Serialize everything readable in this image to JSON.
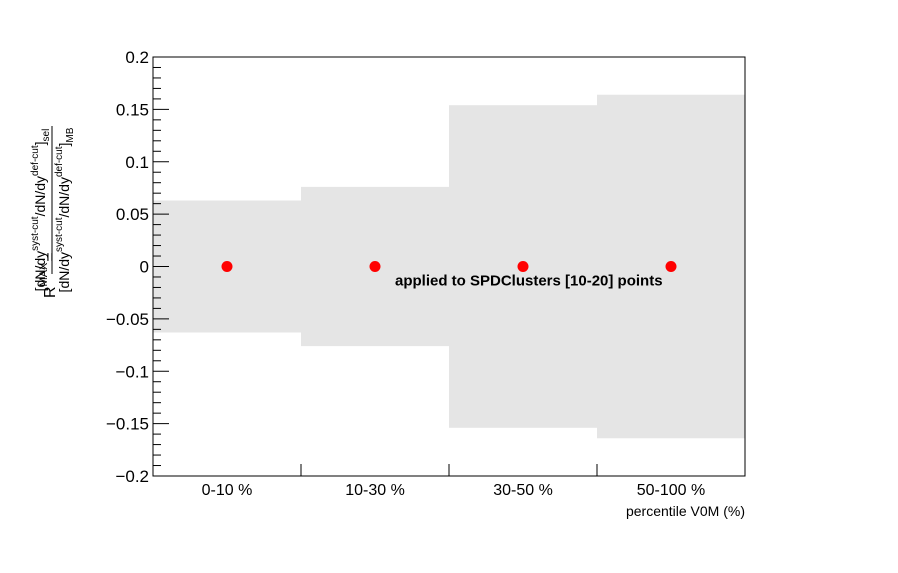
{
  "chart_data": {
    "type": "scatter",
    "categories": [
      "0-10 %",
      "10-30 %",
      "30-50 %",
      "50-100 %"
    ],
    "values": [
      0,
      0,
      0,
      0
    ],
    "band_halfwidth": [
      0.063,
      0.076,
      0.154,
      0.164
    ],
    "xlabel": "percentile V0M (%)",
    "ylabel": {
      "r": "R",
      "r_sup": "MAX",
      "eq": "=",
      "num_open": "[dN/dy",
      "num_sup1": "syst-cut",
      "num_mid": "/dN/dy",
      "num_sup2": "def-cut",
      "num_close": "]",
      "num_sub": "sel",
      "den_open": "[dN/dy",
      "den_sup1": "syst-cut",
      "den_mid": "/dN/dy",
      "den_sup2": "def-cut",
      "den_close": "]",
      "den_sub": "MB"
    },
    "ylim": [
      -0.2,
      0.2
    ],
    "yticks": [
      0.2,
      0.15,
      0.1,
      0.05,
      0,
      -0.05,
      -0.1,
      -0.15,
      -0.2
    ],
    "ytick_labels": [
      "0.2",
      "0.15",
      "0.1",
      "0.05",
      "0",
      "−0.05",
      "−0.1",
      "−0.15",
      "−0.2"
    ],
    "annotation": "applied to SPDClusters [10-20] points",
    "colors": {
      "points": "#ff0000",
      "band": "#e5e5e5",
      "axis": "#000000"
    },
    "grid": false,
    "legend": "none"
  }
}
